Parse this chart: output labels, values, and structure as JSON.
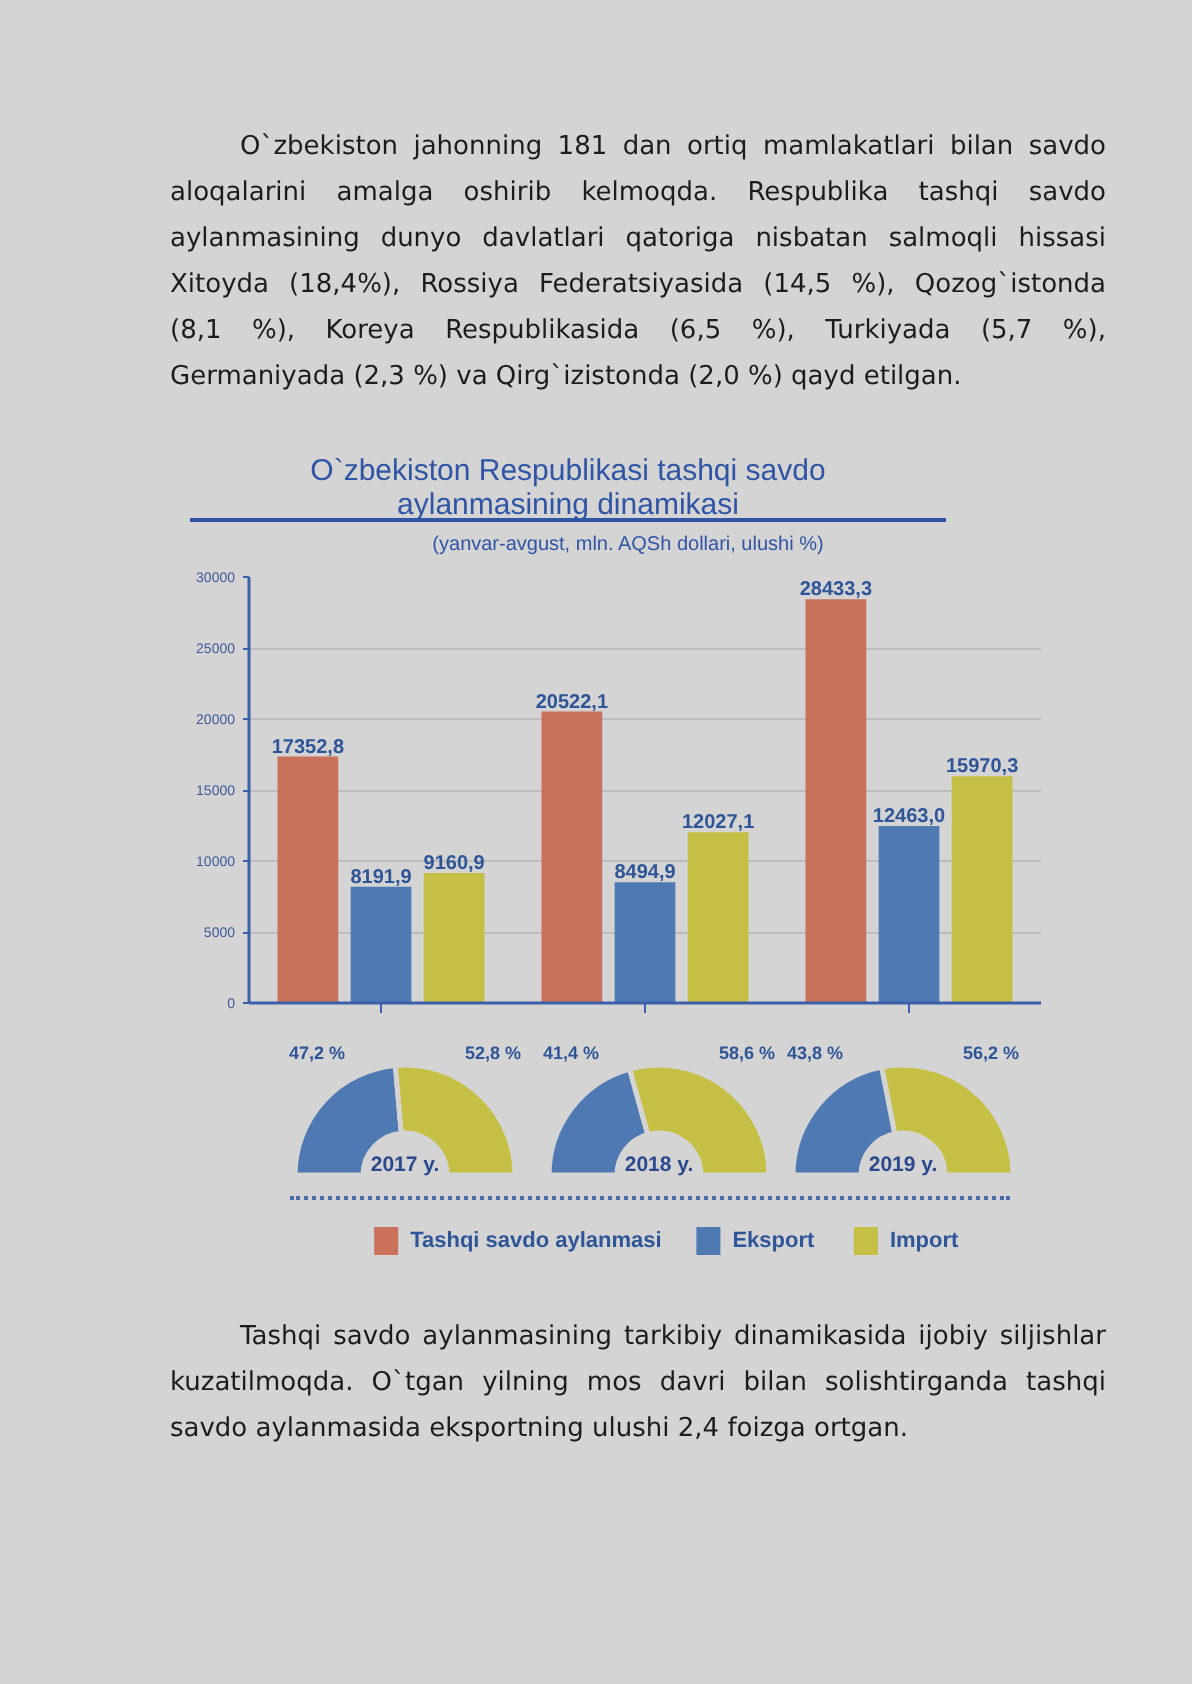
{
  "chart_data": [
    {
      "type": "bar",
      "title": "O`zbekiston Respublikasi tashqi savdo aylanmasining dinamikasi",
      "subtitle": "(yanvar-avgust, mln. AQSh dollari, ulushi %)",
      "annotations": [
        "O`zbekiston jahonning 181 dan ortiq mamlakatlari bilan savdo aloqalarini amalga oshirib kelmoqda. Respublika tashqi savdo aylanmasining dunyo davlatlari qatoriga nisbatan salmoqli hissasi Xitoyda (18,4%), Rossiya Federatsiyasida (14,5 %), Qozog`istonda (8,1 %), Koreya Respublikasida (6,5 %), Turkiyada (5,7 %), Germaniyada (2,3 %) va Qirg`izistonda (2,0 %) qayd etilgan.",
        "Tashqi savdo aylanmasining tarkibiy dinamikasida ijobiy siljishlar kuzatilmoqda. O`tgan yilning mos davri bilan solishtirganda tashqi savdo aylanmasida eksportning ulushi 2,4 foizga ortgan."
      ],
      "categories": [
        null,
        null,
        null
      ],
      "series": [
        {
          "name": "Tashqi savdo aylanmasi",
          "color": "#c9715a",
          "values": [
            17352.8,
            20522.1,
            28433.3
          ],
          "value_labels": [
            "17352,8",
            "20522,1",
            "28433,3"
          ]
        },
        {
          "name": "Eksport",
          "color": "#4e79b2",
          "values": [
            8191.9,
            8494.9,
            12463.0
          ],
          "value_labels": [
            "8191,9",
            "8494,9",
            "12463,0"
          ]
        },
        {
          "name": "Import",
          "color": "#c5bf45",
          "values": [
            9160.9,
            12027.1,
            15970.3
          ],
          "value_labels": [
            "9160,9",
            "12027,1",
            "15970,3"
          ]
        }
      ],
      "ylim": [
        0,
        30000
      ],
      "yticks": [
        0,
        5000,
        10000,
        15000,
        20000,
        25000,
        30000
      ],
      "grid": "y",
      "legend": "bottom",
      "tick_labels": "y"
    },
    {
      "type": "donut",
      "title": "2017 y.",
      "categories": [
        null,
        null
      ],
      "values": [
        47.2,
        52.8
      ],
      "colors": [
        "#4e79b2",
        "#c5bf45"
      ],
      "value_labels": [
        "47,2 %",
        "52,8 %"
      ]
    },
    {
      "type": "donut",
      "title": "2018 y.",
      "categories": [
        null,
        null
      ],
      "values": [
        41.4,
        58.6
      ],
      "colors": [
        "#4e79b2",
        "#c5bf45"
      ],
      "value_labels": [
        "41,4 %",
        "58,6 %"
      ]
    },
    {
      "type": "donut",
      "title": "2019 y.",
      "categories": [
        null,
        null
      ],
      "values": [
        43.8,
        56.2
      ],
      "colors": [
        "#4e79b2",
        "#c5bf45"
      ],
      "value_labels": [
        "43,8 %",
        "56,2 %"
      ]
    }
  ]
}
